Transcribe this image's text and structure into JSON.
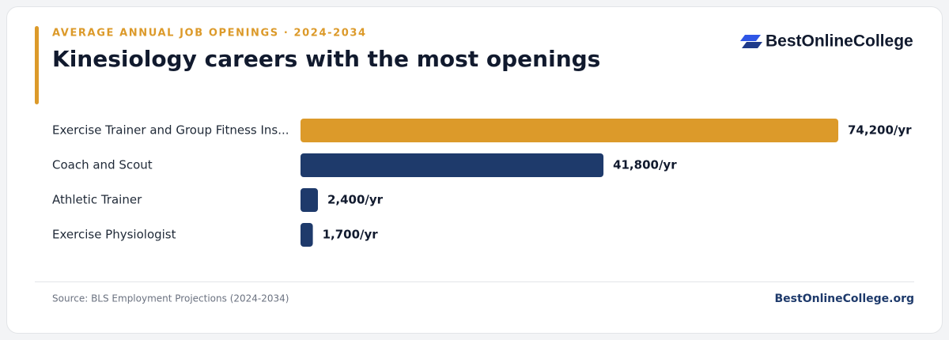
{
  "chart_data": {
    "type": "bar",
    "orientation": "horizontal",
    "subtitle": "AVERAGE ANNUAL JOB OPENINGS · 2024-2034",
    "title": "Kinesiology careers with the most openings",
    "brand": "BestOnlineCollege",
    "categories": [
      "Exercise Trainer and Group Fitness Ins...",
      "Coach and Scout",
      "Athletic Trainer",
      "Exercise Physiologist"
    ],
    "values": [
      74200,
      41800,
      2400,
      1700
    ],
    "value_labels": [
      "74,200/yr",
      "41,800/yr",
      "2,400/yr",
      "1,700/yr"
    ],
    "colors": [
      "#dc9a2a",
      "#1e3a6b",
      "#1e3a6b",
      "#1e3a6b"
    ],
    "source": "Source: BLS Employment Projections (2024-2034)",
    "footer": "BestOnlineCollege.org"
  }
}
